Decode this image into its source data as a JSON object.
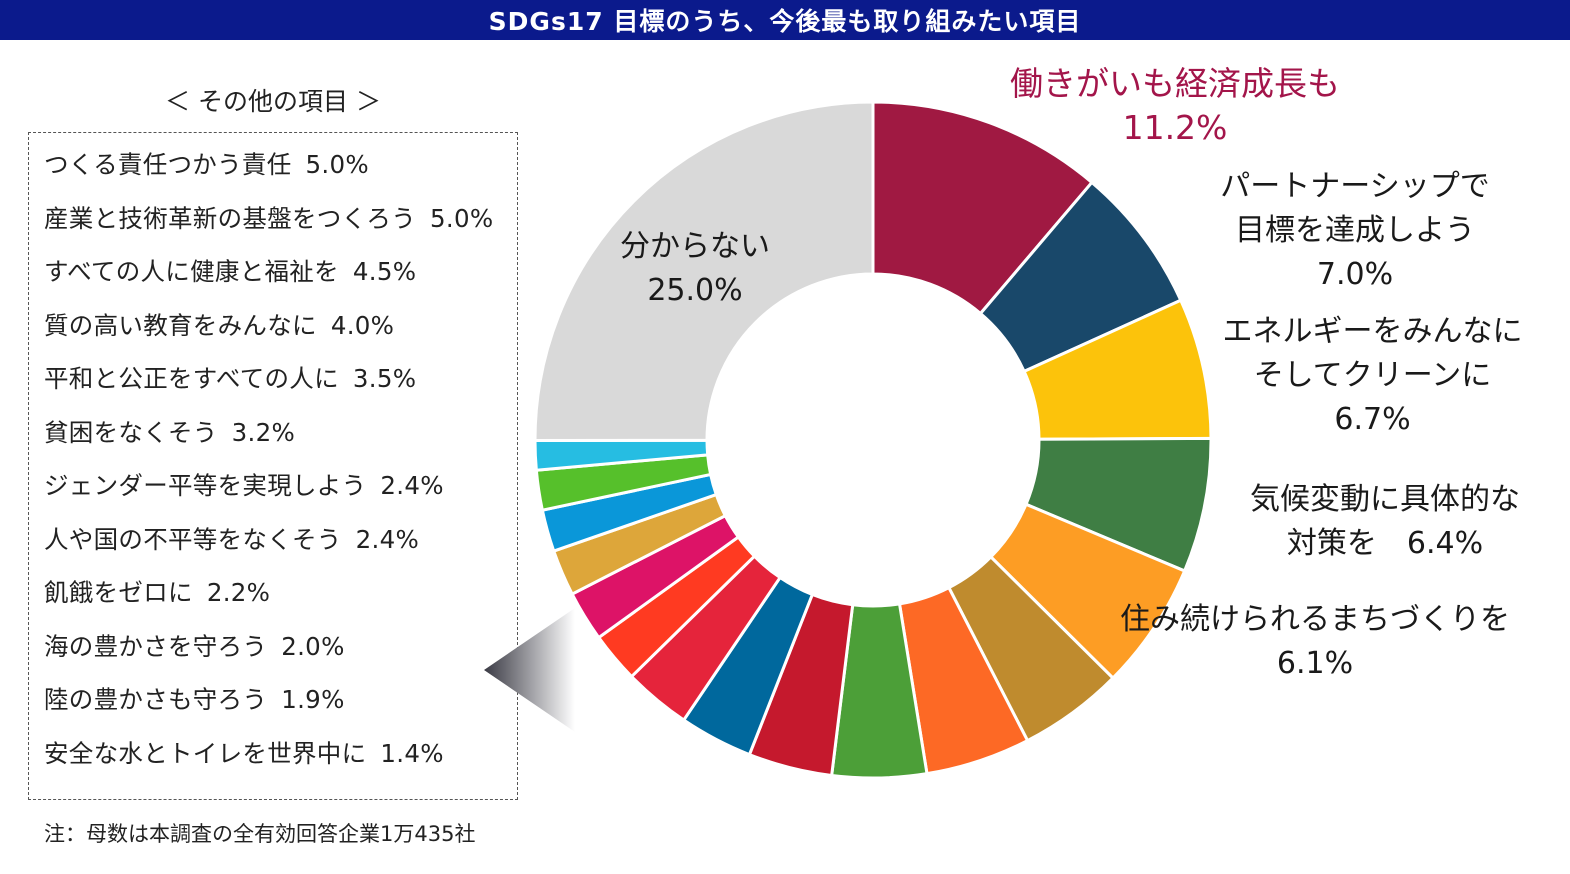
{
  "header": {
    "title": "SDGs17 目標のうち、今後最も取り組みたい項目"
  },
  "colors": {
    "header_bg": "#0b1a8c",
    "highlight_text": "#a3154a",
    "pointer_gradient": [
      "#3a3a44",
      "#ffffff"
    ]
  },
  "other_panel": {
    "heading": "＜ その他の項目 ＞",
    "items": [
      {
        "name": "つくる責任つかう責任",
        "pct": "5.0%"
      },
      {
        "name": "産業と技術革新の基盤をつくろう",
        "pct": "5.0%"
      },
      {
        "name": "すべての人に健康と福祉を",
        "pct": "4.5%"
      },
      {
        "name": "質の高い教育をみんなに",
        "pct": "4.0%"
      },
      {
        "name": "平和と公正をすべての人に",
        "pct": "3.5%"
      },
      {
        "name": "貧困をなくそう",
        "pct": "3.2%"
      },
      {
        "name": "ジェンダー平等を実現しよう",
        "pct": "2.4%"
      },
      {
        "name": "人や国の不平等をなくそう",
        "pct": "2.4%"
      },
      {
        "name": "飢餓をゼロに",
        "pct": "2.2%"
      },
      {
        "name": "海の豊かさを守ろう",
        "pct": "2.0%"
      },
      {
        "name": "陸の豊かさも守ろう",
        "pct": "1.9%"
      },
      {
        "name": "安全な水とトイレを世界中に",
        "pct": "1.4%"
      }
    ]
  },
  "footnote": "注：母数は本調査の全有効回答企業1万435社",
  "chart_data": {
    "type": "pie",
    "variant": "donut",
    "start": "12 o'clock, clockwise",
    "legend": "none",
    "slices": [
      {
        "key": "work",
        "label_lines": [
          "働きがいも経済成長も",
          "11.2%"
        ],
        "value": 11.2,
        "color": "#a01942",
        "labeled": true,
        "highlight": true
      },
      {
        "key": "partnership",
        "label_lines": [
          "パートナーシップで",
          "目標を達成しよう",
          "7.0%"
        ],
        "value": 7.0,
        "color": "#19486a",
        "labeled": true
      },
      {
        "key": "energy",
        "label_lines": [
          "エネルギーをみんなに",
          "そしてクリーンに",
          "6.7%"
        ],
        "value": 6.7,
        "color": "#fcc30b",
        "labeled": true
      },
      {
        "key": "climate",
        "label_lines": [
          "気候変動に具体的な",
          "対策を　6.4%"
        ],
        "value": 6.4,
        "color": "#3f7e44",
        "labeled": true
      },
      {
        "key": "cities",
        "label_lines": [
          "住み続けられるまちづくりを",
          "6.1%"
        ],
        "value": 6.1,
        "color": "#fd9d24",
        "labeled": true
      },
      {
        "key": "responsible",
        "value": 5.0,
        "color": "#bf8b2e"
      },
      {
        "key": "industry",
        "value": 5.0,
        "color": "#fd6925"
      },
      {
        "key": "health",
        "value": 4.5,
        "color": "#4c9f38"
      },
      {
        "key": "education",
        "value": 4.0,
        "color": "#c5192d"
      },
      {
        "key": "peace",
        "value": 3.5,
        "color": "#00689d"
      },
      {
        "key": "poverty",
        "value": 3.2,
        "color": "#e5243b"
      },
      {
        "key": "gender",
        "value": 2.4,
        "color": "#ff3a21"
      },
      {
        "key": "inequality",
        "value": 2.4,
        "color": "#dd1367"
      },
      {
        "key": "hunger",
        "value": 2.2,
        "color": "#dda63a"
      },
      {
        "key": "ocean",
        "value": 2.0,
        "color": "#0a97d9"
      },
      {
        "key": "land",
        "value": 1.9,
        "color": "#56c02b"
      },
      {
        "key": "water",
        "value": 1.4,
        "color": "#26bde2"
      },
      {
        "key": "unknown",
        "label_lines": [
          "分からない",
          "25.0%"
        ],
        "value": 25.0,
        "color": "#d9d9d9",
        "labeled": true
      }
    ]
  }
}
